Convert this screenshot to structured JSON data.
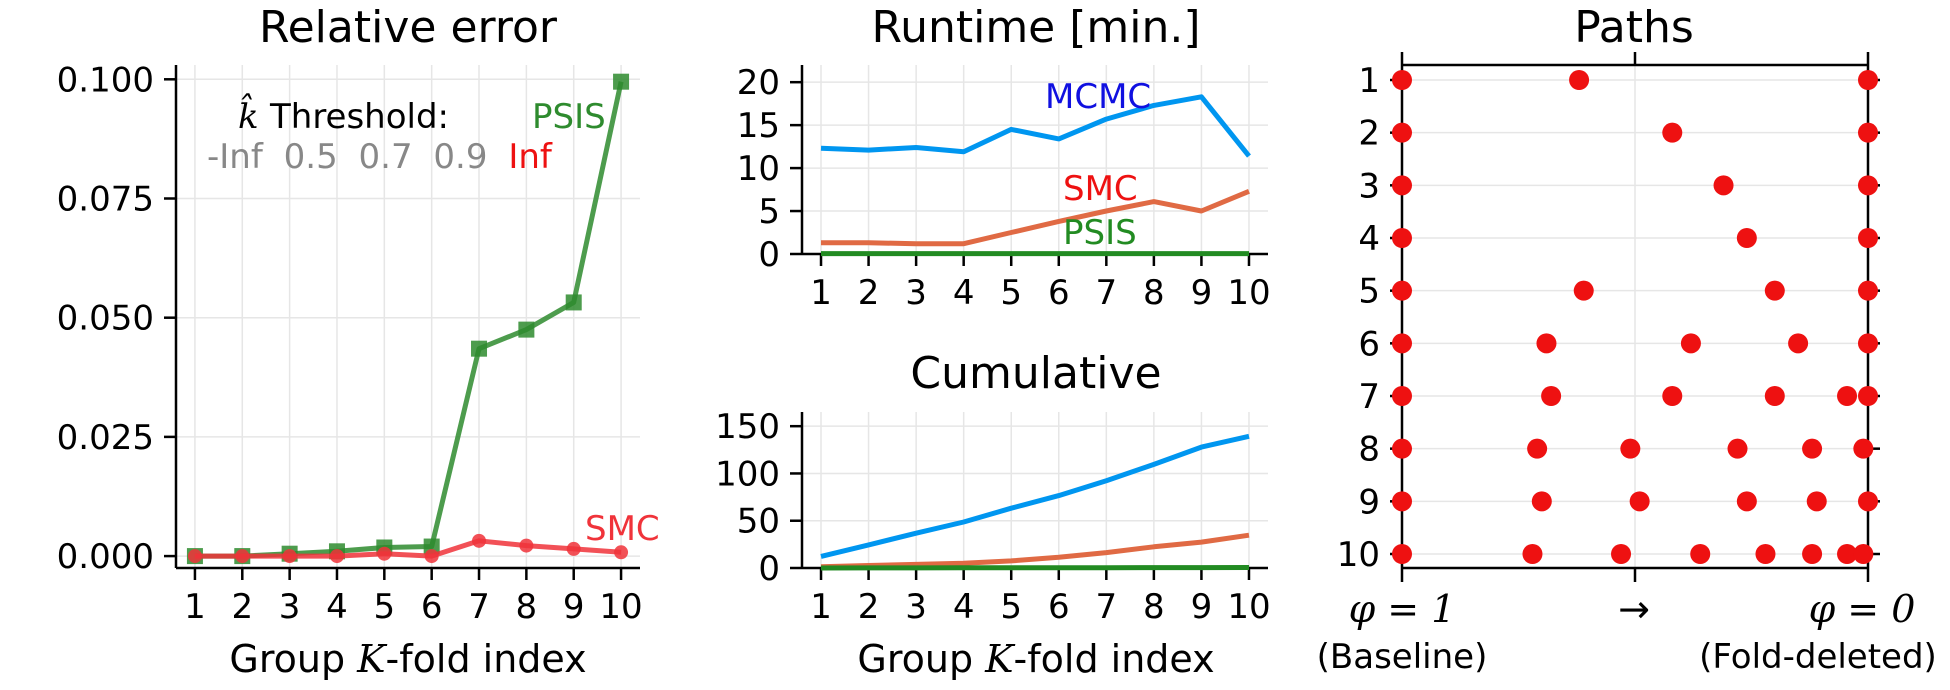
{
  "chart_data": [
    {
      "id": "relative-error",
      "type": "line",
      "title": "Relative error",
      "xlabel_prefix": "Group ",
      "xlabel_var": "K",
      "xlabel_suffix": "-fold index",
      "x": [
        1,
        2,
        3,
        4,
        5,
        6,
        7,
        8,
        9,
        10
      ],
      "xlim": [
        0.6,
        10.4
      ],
      "ylim": [
        -0.0025,
        0.103
      ],
      "yticks": [
        0.0,
        0.025,
        0.05,
        0.075,
        0.1
      ],
      "ytick_labels": [
        "0.000",
        "0.025",
        "0.050",
        "0.075",
        "0.100"
      ],
      "grid": true,
      "series": [
        {
          "name": "PSIS",
          "color": "#2e8b2e",
          "marker": "square",
          "values": [
            0.0,
            0.0,
            0.0005,
            0.001,
            0.0018,
            0.002,
            0.0435,
            0.0475,
            0.0532,
            0.0995
          ]
        },
        {
          "name": "SMC",
          "color": "#f0333a",
          "marker": "circle",
          "values": [
            0.0,
            0.0,
            0.0,
            0.0,
            0.0005,
            0.0,
            0.0032,
            0.0022,
            0.0015,
            0.0008
          ]
        }
      ],
      "legend": {
        "khat_symbol": "k̂",
        "heading": "Threshold:",
        "levels": [
          "-Inf",
          "0.5",
          "0.7",
          "0.9"
        ],
        "last_level": "Inf",
        "level_color": "#888888",
        "last_level_color": "#ee1111"
      }
    },
    {
      "id": "runtime",
      "type": "line",
      "title": "Runtime [min.]",
      "x": [
        1,
        2,
        3,
        4,
        5,
        6,
        7,
        8,
        9,
        10
      ],
      "xlim": [
        0.6,
        10.4
      ],
      "ylim": [
        0,
        22
      ],
      "yticks": [
        0,
        5,
        10,
        15,
        20
      ],
      "grid": true,
      "series": [
        {
          "name": "MCMC",
          "color": "#0096f0",
          "label_color": "#1010e0",
          "values": [
            12.3,
            12.1,
            12.4,
            11.9,
            14.5,
            13.4,
            15.7,
            17.3,
            18.3,
            11.4
          ]
        },
        {
          "name": "SMC",
          "color": "#e06a44",
          "label_color": "#ee1111",
          "values": [
            1.3,
            1.3,
            1.2,
            1.2,
            2.5,
            3.8,
            5.0,
            6.1,
            5.0,
            7.3
          ]
        },
        {
          "name": "PSIS",
          "color": "#228b22",
          "label_color": "#228b22",
          "values": [
            0.05,
            0.05,
            0.05,
            0.05,
            0.05,
            0.05,
            0.05,
            0.05,
            0.05,
            0.05
          ]
        }
      ]
    },
    {
      "id": "cumulative",
      "type": "line",
      "title": "Cumulative",
      "xlabel_prefix": "Group ",
      "xlabel_var": "K",
      "xlabel_suffix": "-fold index",
      "x": [
        1,
        2,
        3,
        4,
        5,
        6,
        7,
        8,
        9,
        10
      ],
      "xlim": [
        0.6,
        10.4
      ],
      "ylim": [
        0,
        165
      ],
      "yticks": [
        0,
        50,
        100,
        150
      ],
      "grid": true,
      "series": [
        {
          "name": "MCMC",
          "color": "#0096f0",
          "values": [
            12.3,
            24.4,
            36.8,
            48.7,
            63.2,
            76.6,
            92.3,
            109.6,
            127.9,
            139.3
          ]
        },
        {
          "name": "SMC",
          "color": "#e06a44",
          "values": [
            1.3,
            2.6,
            3.8,
            5.0,
            7.5,
            11.3,
            16.3,
            22.4,
            27.4,
            34.7
          ]
        },
        {
          "name": "PSIS",
          "color": "#228b22",
          "values": [
            0.05,
            0.1,
            0.15,
            0.2,
            0.25,
            0.3,
            0.35,
            0.4,
            0.45,
            0.5
          ]
        }
      ]
    },
    {
      "id": "paths",
      "type": "scatter",
      "title": "Paths",
      "rows": [
        1,
        2,
        3,
        4,
        5,
        6,
        7,
        8,
        9,
        10
      ],
      "xlim": [
        1,
        0
      ],
      "color": "#ee1111",
      "points_phi": [
        [
          1,
          0.62,
          0
        ],
        [
          1,
          0.42,
          0
        ],
        [
          1,
          0.31,
          0
        ],
        [
          1,
          0.26,
          0
        ],
        [
          1,
          0.61,
          0.2,
          0
        ],
        [
          1,
          0.69,
          0.38,
          0.15,
          0
        ],
        [
          1,
          0.68,
          0.42,
          0.2,
          0.045,
          0
        ],
        [
          1,
          0.71,
          0.51,
          0.28,
          0.12,
          0.01
        ],
        [
          1,
          0.7,
          0.49,
          0.26,
          0.11,
          0
        ],
        [
          1,
          0.72,
          0.53,
          0.36,
          0.22,
          0.12,
          0.045,
          0.01
        ]
      ],
      "x_left_label": "φ = 1",
      "x_mid_label": "→",
      "x_right_label": "φ = 0",
      "x_left_caption": "(Baseline)",
      "x_right_caption": "(Fold-deleted)"
    }
  ]
}
